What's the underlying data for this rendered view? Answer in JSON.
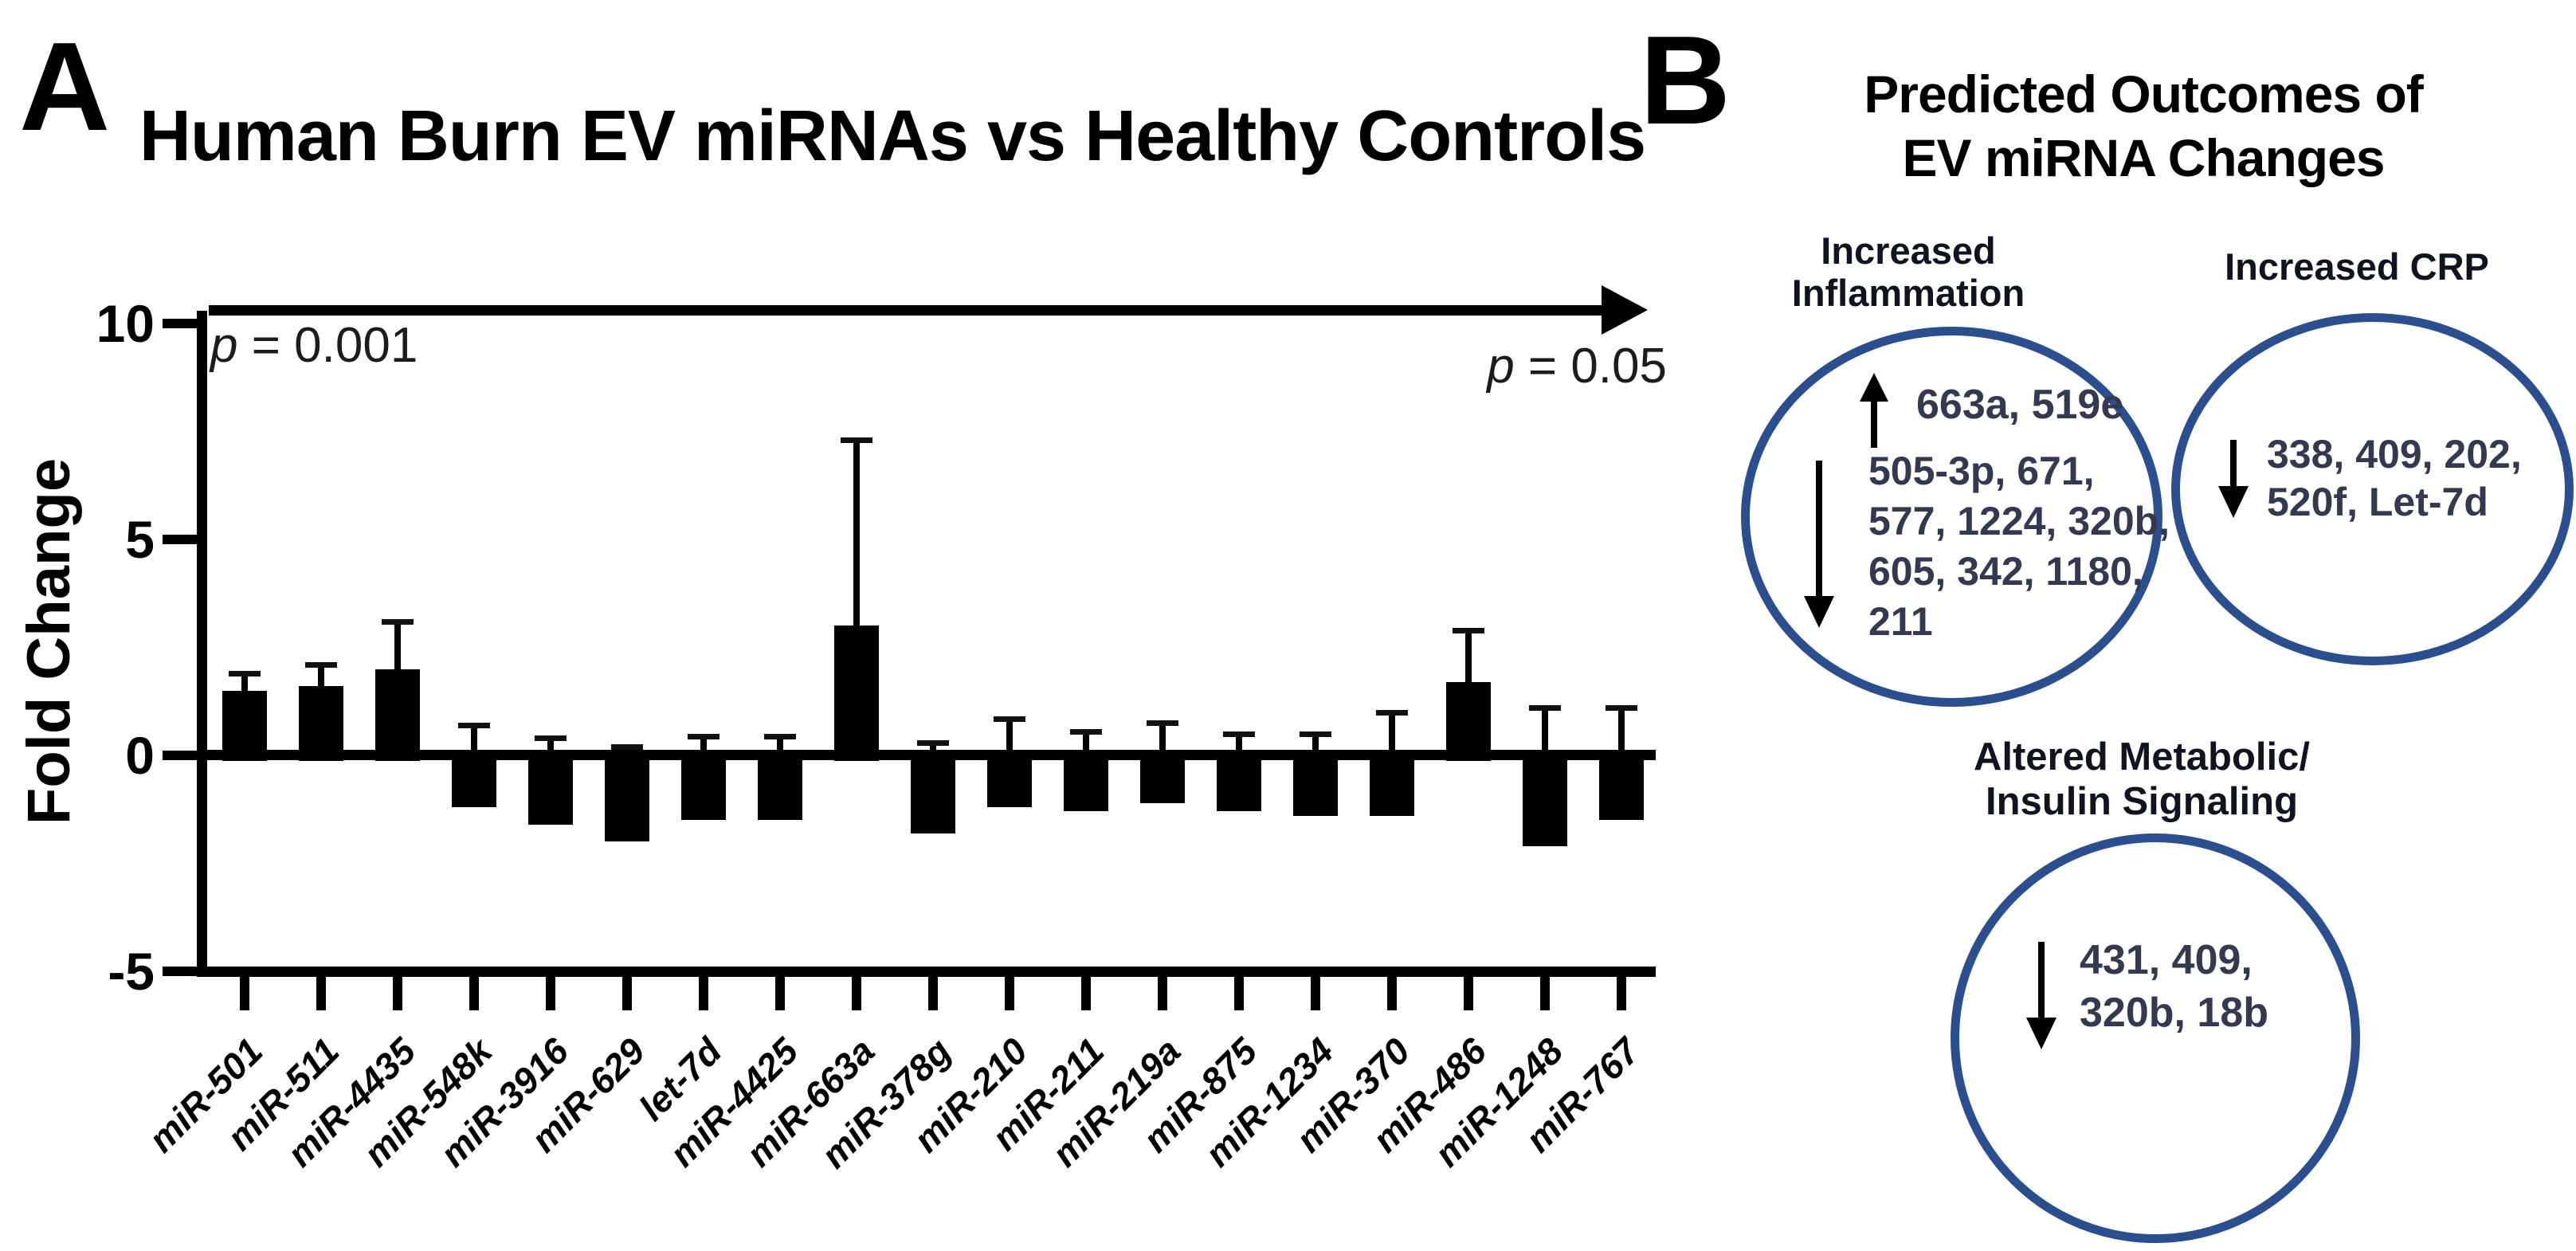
{
  "panelA": {
    "label": "A",
    "p_left": "p = 0.001",
    "p_right": "p = 0.05"
  },
  "chart_data": {
    "type": "bar",
    "title": "Human Burn EV miRNAs vs Healthy Controls",
    "xlabel": "",
    "ylabel": "Fold Change",
    "ylim": [
      -5,
      10
    ],
    "yticks": [
      10,
      5,
      0,
      -5
    ],
    "grid": false,
    "legend": "none",
    "bar_color": "#000000",
    "significance_axis": {
      "left_label": "p = 0.001",
      "right_label": "p = 0.05"
    },
    "categories": [
      "miR-501",
      "miR-511",
      "miR-4435",
      "miR-548k",
      "miR-3916",
      "miR-629",
      "let-7d",
      "miR-4425",
      "miR-663a",
      "miR-378g",
      "miR-210",
      "miR-211",
      "miR-219a",
      "miR-875",
      "miR-1234",
      "miR-370",
      "miR-486",
      "miR-1248",
      "miR-767"
    ],
    "values": [
      1.5,
      1.6,
      2.0,
      -1.2,
      -1.6,
      -2.0,
      -1.5,
      -1.5,
      3.0,
      -1.8,
      -1.2,
      -1.3,
      -1.1,
      -1.3,
      -1.4,
      -1.4,
      1.7,
      -2.1,
      -1.5
    ],
    "error_upper": [
      1.9,
      2.1,
      3.1,
      0.7,
      0.4,
      0.2,
      0.45,
      0.45,
      7.3,
      0.3,
      0.85,
      0.55,
      0.75,
      0.5,
      0.5,
      1.0,
      2.9,
      1.1,
      1.1
    ]
  },
  "panelB": {
    "label": "B",
    "title_lines": [
      "Predicted Outcomes of",
      "EV miRNA Changes"
    ],
    "circle_color": "#2b4e8e",
    "groups": [
      {
        "name": "increased-inflammation",
        "header_lines": [
          "Increased",
          "Inflammation"
        ],
        "up_icon": "up-arrow-icon",
        "up_text": "663a, 519e",
        "down_icon": "down-arrow-icon",
        "down_lines": [
          "505-3p, 671,",
          "577, 1224, 320b,",
          "605, 342, 1180,",
          "211"
        ]
      },
      {
        "name": "increased-crp",
        "header_lines": [
          "Increased CRP"
        ],
        "down_icon": "down-arrow-icon",
        "down_lines": [
          "338, 409, 202,",
          "520f, Let-7d"
        ]
      },
      {
        "name": "altered-metabolic-insulin-signaling",
        "header_lines": [
          "Altered Metabolic/",
          "Insulin Signaling"
        ],
        "down_icon": "down-arrow-icon",
        "down_lines": [
          "431, 409,",
          "320b, 18b"
        ]
      }
    ]
  }
}
